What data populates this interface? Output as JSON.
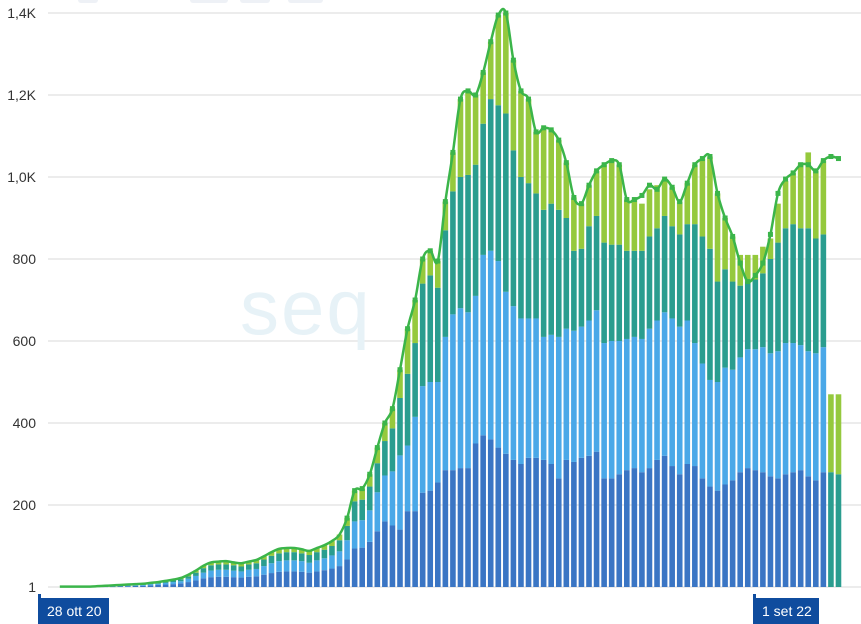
{
  "watermark": "seq",
  "x_start_label": "28 ott 20",
  "x_end_label": "1 set 22",
  "colors": {
    "series_1": "#3a75c4",
    "series_2": "#4aa8e8",
    "series_3": "#2a9d8f",
    "series_4": "#95c93d",
    "total_line": "#3bb54a",
    "badge": "#0f4c9e"
  },
  "chart_data": {
    "type": "bar",
    "stacked": true,
    "y_tick_labels": [
      "1",
      "200",
      "400",
      "600",
      "800",
      "1,0K",
      "1,2K",
      "1,4K"
    ],
    "y_tick_values": [
      0,
      200,
      400,
      600,
      800,
      1000,
      1200,
      1400
    ],
    "ylim": [
      0,
      1400
    ],
    "grid": true,
    "x_start": "28 ott 20",
    "x_end": "1 set 22",
    "totals": [
      1,
      1,
      1,
      1,
      1,
      2,
      3,
      4,
      5,
      6,
      7,
      8,
      10,
      12,
      15,
      18,
      22,
      30,
      40,
      52,
      60,
      62,
      63,
      60,
      58,
      62,
      66,
      75,
      85,
      93,
      95,
      95,
      92,
      88,
      95,
      102,
      112,
      128,
      168,
      235,
      240,
      275,
      340,
      400,
      435,
      530,
      630,
      700,
      800,
      820,
      795,
      940,
      1060,
      1190,
      1210,
      1200,
      1255,
      1330,
      1395,
      1400,
      1285,
      1210,
      1190,
      1110,
      1120,
      1115,
      1090,
      1035,
      950,
      935,
      980,
      1015,
      1030,
      1040,
      1030,
      945,
      945,
      955,
      980,
      970,
      995,
      975,
      940,
      985,
      1030,
      1045,
      1050,
      960,
      900,
      855,
      790,
      745,
      760,
      790,
      860,
      960,
      995,
      1010,
      1030,
      1030,
      1015,
      1040,
      1050,
      1045
    ],
    "series": [
      {
        "values": [
          0,
          0,
          0,
          0,
          0,
          1,
          1,
          1,
          2,
          2,
          3,
          3,
          4,
          5,
          6,
          7,
          9,
          12,
          16,
          21,
          24,
          25,
          25,
          24,
          23,
          25,
          26,
          30,
          34,
          37,
          38,
          38,
          37,
          35,
          38,
          41,
          45,
          51,
          67,
          94,
          96,
          110,
          136,
          160,
          150,
          140,
          185,
          185,
          230,
          235,
          255,
          285,
          285,
          290,
          290,
          350,
          370,
          360,
          340,
          325,
          310,
          300,
          315,
          315,
          310,
          300,
          265,
          310,
          305,
          315,
          320,
          330,
          265,
          265,
          275,
          285,
          290,
          280,
          290,
          310,
          320,
          295,
          275,
          300,
          295,
          265,
          245,
          235,
          250,
          260,
          280,
          290,
          285,
          280,
          270,
          265,
          275,
          280,
          285,
          270,
          260,
          280
        ]
      },
      {
        "values": [
          0,
          0,
          0,
          0,
          0,
          0,
          1,
          1,
          1,
          2,
          2,
          2,
          3,
          3,
          4,
          5,
          5,
          8,
          11,
          14,
          16,
          17,
          17,
          16,
          15,
          17,
          18,
          21,
          24,
          26,
          27,
          27,
          26,
          24,
          27,
          29,
          32,
          36,
          47,
          66,
          67,
          77,
          95,
          112,
          132,
          181,
          160,
          230,
          260,
          265,
          245,
          325,
          380,
          390,
          380,
          360,
          440,
          460,
          455,
          395,
          375,
          355,
          340,
          340,
          300,
          315,
          345,
          320,
          320,
          320,
          330,
          345,
          330,
          335,
          325,
          320,
          320,
          325,
          340,
          340,
          350,
          360,
          360,
          350,
          300,
          280,
          260,
          265,
          285,
          270,
          280,
          290,
          295,
          305,
          300,
          310,
          320,
          315,
          305,
          305,
          310,
          305
        ]
      },
      {
        "values": [
          0,
          0,
          0,
          0,
          0,
          1,
          1,
          1,
          1,
          1,
          1,
          2,
          2,
          3,
          3,
          4,
          5,
          6,
          8,
          11,
          13,
          13,
          13,
          13,
          12,
          13,
          14,
          16,
          18,
          19,
          20,
          20,
          19,
          19,
          20,
          21,
          23,
          27,
          35,
          49,
          50,
          58,
          71,
          84,
          105,
          140,
          175,
          180,
          250,
          260,
          230,
          260,
          300,
          320,
          335,
          320,
          320,
          370,
          380,
          435,
          380,
          345,
          330,
          305,
          310,
          320,
          310,
          270,
          195,
          190,
          230,
          230,
          245,
          235,
          235,
          215,
          210,
          215,
          225,
          225,
          235,
          225,
          225,
          235,
          290,
          310,
          320,
          245,
          240,
          215,
          175,
          165,
          170,
          180,
          230,
          265,
          280,
          290,
          285,
          300,
          280,
          275,
          280,
          275
        ]
      },
      {
        "values": [
          0,
          0,
          0,
          0,
          0,
          0,
          0,
          1,
          1,
          1,
          1,
          1,
          1,
          1,
          2,
          2,
          3,
          4,
          5,
          6,
          7,
          7,
          8,
          7,
          8,
          7,
          8,
          8,
          9,
          11,
          10,
          10,
          10,
          10,
          10,
          11,
          12,
          14,
          19,
          26,
          27,
          30,
          38,
          44,
          48,
          69,
          110,
          105,
          60,
          60,
          65,
          70,
          95,
          190,
          205,
          170,
          125,
          140,
          220,
          245,
          220,
          210,
          205,
          150,
          200,
          180,
          170,
          135,
          130,
          110,
          100,
          110,
          190,
          205,
          195,
          125,
          125,
          115,
          115,
          105,
          90,
          95,
          80,
          100,
          145,
          190,
          225,
          215,
          125,
          110,
          75,
          65,
          60,
          65,
          50,
          95,
          115,
          125,
          160,
          185,
          165,
          180,
          190,
          195
        ]
      }
    ]
  }
}
